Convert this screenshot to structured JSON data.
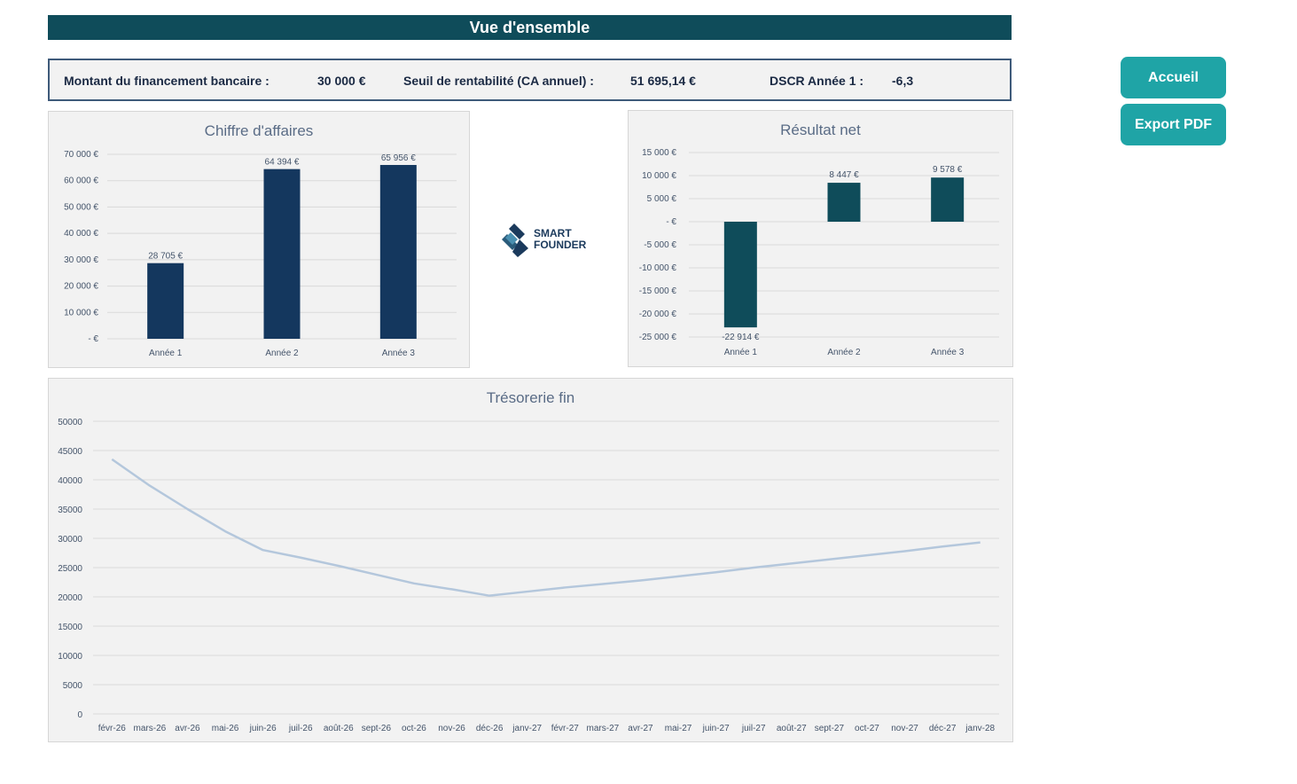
{
  "header": {
    "title": "Vue d'ensemble"
  },
  "kpis": {
    "financing_label": "Montant du financement bancaire :",
    "financing_value": "30 000 €",
    "breakeven_label": "Seuil de rentabilité (CA annuel) :",
    "breakeven_value": "51 695,14 €",
    "dscr_label": "DSCR Année 1 :",
    "dscr_value": "-6,3"
  },
  "buttons": {
    "home": "Accueil",
    "export": "Export PDF"
  },
  "logo": {
    "line1": "SMART",
    "line2": "FOUNDER"
  },
  "colors": {
    "header": "#0f4c5a",
    "revenue_bar": "#14375e",
    "net_bar": "#0f4c5a",
    "line": "#b4c7dc",
    "button": "#1fa4a6"
  },
  "chart_data": [
    {
      "type": "bar",
      "title": "Chiffre d'affaires",
      "categories": [
        "Année 1",
        "Année 2",
        "Année 3"
      ],
      "values": [
        28705,
        64394,
        65956
      ],
      "value_labels": [
        "28 705 €",
        "64 394 €",
        "65 956 €"
      ],
      "ylim": [
        0,
        70000
      ],
      "yticks": [
        0,
        10000,
        20000,
        30000,
        40000,
        50000,
        60000,
        70000
      ],
      "ytick_labels": [
        "-   €",
        "10 000 €",
        "20 000 €",
        "30 000 €",
        "40 000 €",
        "50 000 €",
        "60 000 €",
        "70 000 €"
      ],
      "grid": true
    },
    {
      "type": "bar",
      "title": "Résultat net",
      "categories": [
        "Année 1",
        "Année 2",
        "Année 3"
      ],
      "values": [
        -22914,
        8447,
        9578
      ],
      "value_labels": [
        "-22 914 €",
        "8 447 €",
        "9 578 €"
      ],
      "ylim": [
        -25000,
        15000
      ],
      "yticks": [
        -25000,
        -20000,
        -15000,
        -10000,
        -5000,
        0,
        5000,
        10000,
        15000
      ],
      "ytick_labels": [
        "-25 000 €",
        "-20 000 €",
        "-15 000 €",
        "-10 000 €",
        "-5 000 €",
        "-   €",
        "5 000 €",
        "10 000 €",
        "15 000 €"
      ],
      "grid": true
    },
    {
      "type": "line",
      "title": "Trésorerie fin",
      "categories": [
        "févr-26",
        "mars-26",
        "avr-26",
        "mai-26",
        "juin-26",
        "juil-26",
        "août-26",
        "sept-26",
        "oct-26",
        "nov-26",
        "déc-26",
        "janv-27",
        "févr-27",
        "mars-27",
        "avr-27",
        "mai-27",
        "juin-27",
        "juil-27",
        "août-27",
        "sept-27",
        "oct-27",
        "nov-27",
        "déc-27",
        "janv-28"
      ],
      "values": [
        43500,
        39000,
        35000,
        31200,
        28000,
        26700,
        25300,
        23800,
        22300,
        21300,
        20200,
        20900,
        21600,
        22200,
        22800,
        23500,
        24200,
        25000,
        25700,
        26400,
        27100,
        27800,
        28600,
        29300
      ],
      "ylim": [
        0,
        50000
      ],
      "yticks": [
        0,
        5000,
        10000,
        15000,
        20000,
        25000,
        30000,
        35000,
        40000,
        45000,
        50000
      ],
      "ytick_labels": [
        "0",
        "5000",
        "10000",
        "15000",
        "20000",
        "25000",
        "30000",
        "35000",
        "40000",
        "45000",
        "50000"
      ],
      "grid": true
    }
  ]
}
